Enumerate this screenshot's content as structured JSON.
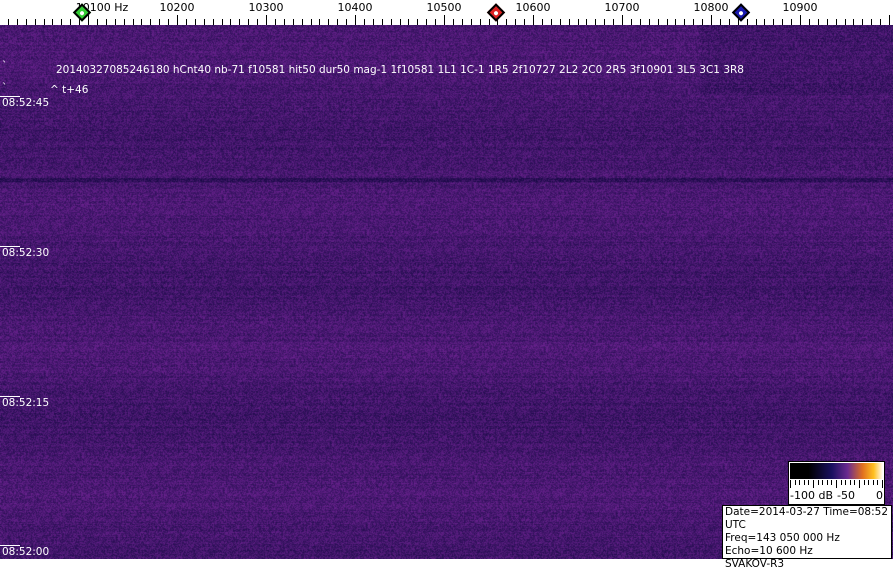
{
  "axis": {
    "unit_label": "Hz",
    "labels": [
      "10100",
      "10200",
      "10300",
      "10400",
      "10500",
      "10600",
      "10700",
      "10800",
      "10900"
    ],
    "first_label_suffix": " Hz",
    "markers": [
      {
        "name": "green-marker",
        "freq": 10100,
        "color": "#33cc33"
      },
      {
        "name": "red-marker",
        "freq": 10565,
        "color": "#dd2222"
      },
      {
        "name": "blue-marker",
        "freq": 10840,
        "color": "#1a1ab0"
      }
    ]
  },
  "detection": {
    "line": "20140327085246180 hCnt40 nb-71 f10581 hit50 dur50 mag-1 1f10581 1L1 1C-1 1R5 2f10727 2L2 2C0 2R5 3f10901 3L5 3C1 3R8",
    "offset": "^ t+46"
  },
  "time_labels": [
    "08:52:45",
    "08:52:30",
    "08:52:15",
    "08:52:00"
  ],
  "scale": {
    "labels": [
      "-100 dB",
      "-50",
      "0"
    ]
  },
  "info": {
    "date": "Date=2014-03-27 Time=08:52 UTC",
    "freq": "Freq=143 050 000 Hz",
    "echo": "Echo=10 600 Hz",
    "station": "SVAKOV-R3"
  },
  "colors": {
    "background_noise": "#2c1a7a",
    "colormap": [
      "#000000",
      "#1a1060",
      "#6a2a90",
      "#e07020",
      "#ffc020",
      "#ffffff"
    ]
  }
}
